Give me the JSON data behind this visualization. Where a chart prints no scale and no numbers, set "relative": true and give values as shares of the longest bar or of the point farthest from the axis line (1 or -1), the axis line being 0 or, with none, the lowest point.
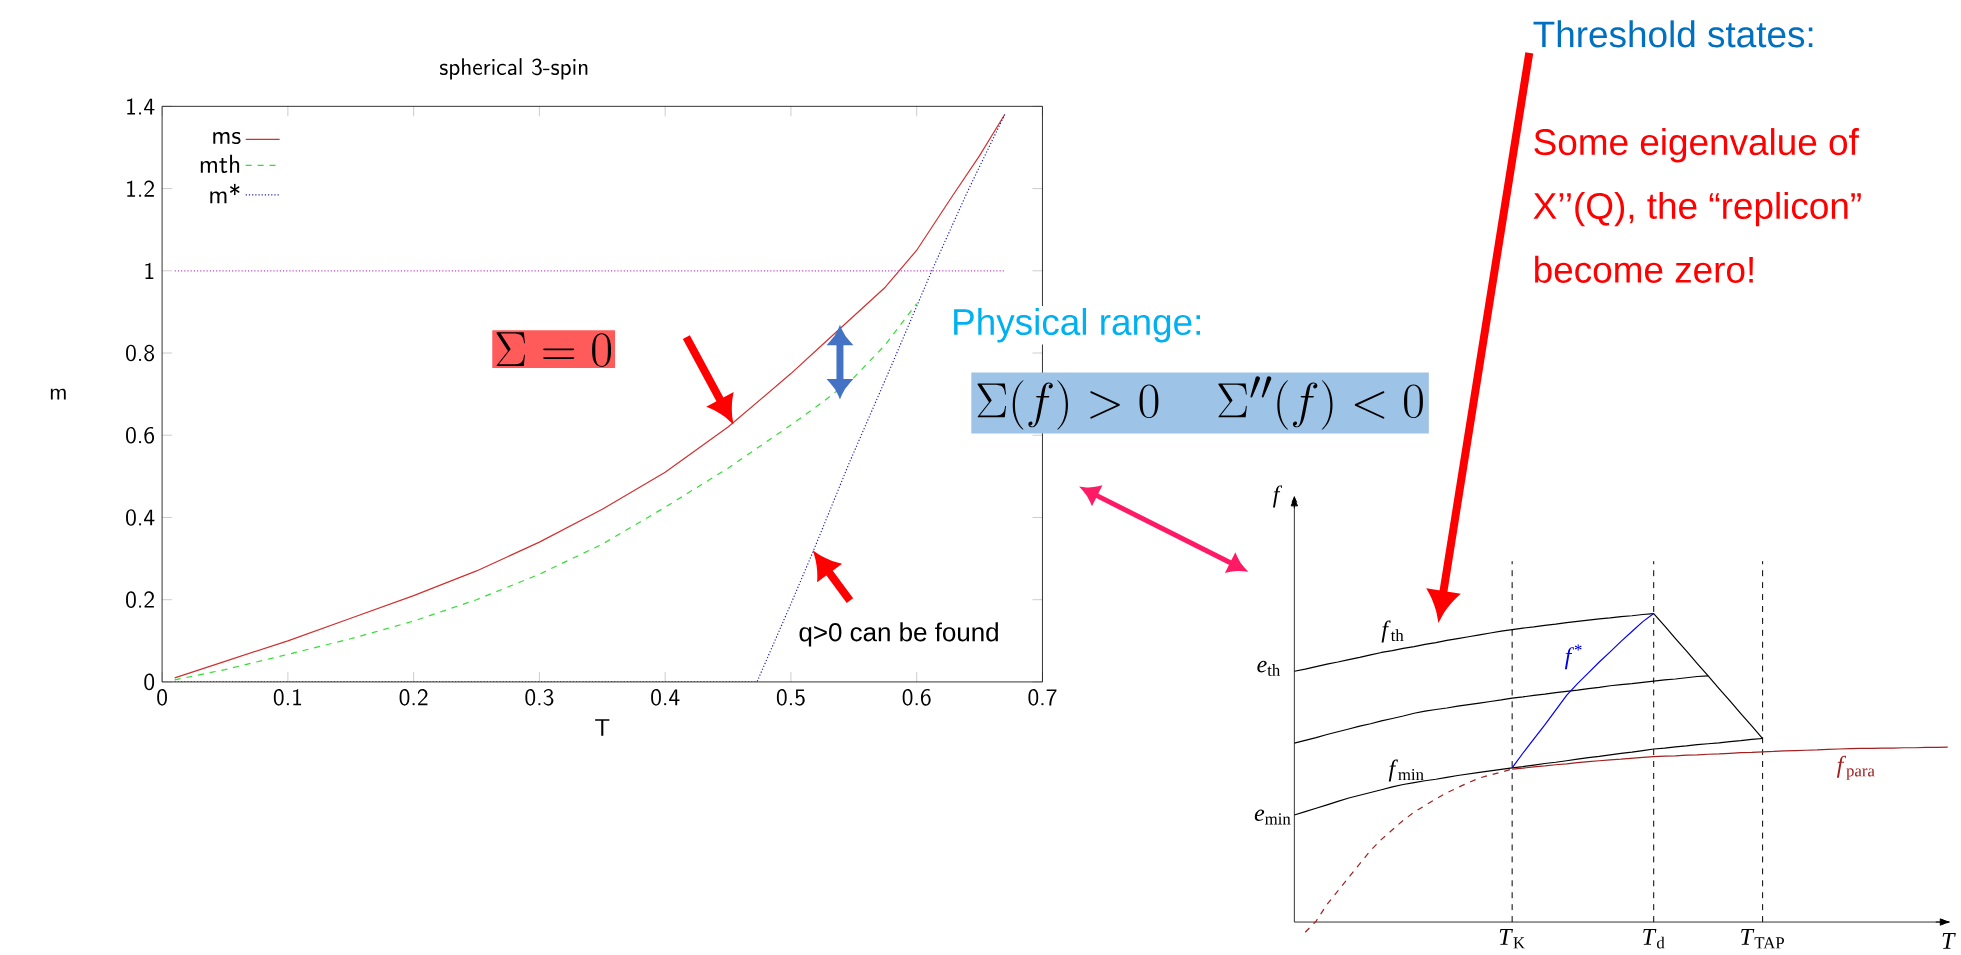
{
  "chart_data": [
    {
      "type": "line",
      "title": "spherical 3-spin",
      "xlabel": "T",
      "ylabel": "m",
      "xlim": [
        0,
        0.7
      ],
      "ylim": [
        0,
        1.4
      ],
      "xticks": [
        0,
        0.1,
        0.2,
        0.3,
        0.4,
        0.5,
        0.6,
        0.7
      ],
      "yticks": [
        0,
        0.2,
        0.4,
        0.6,
        0.8,
        1,
        1.2,
        1.4
      ],
      "legend": "top left",
      "annotations": [
        "\\Sigma = 0",
        "q>0 can be found",
        "Physical range:",
        "\\Sigma(f) > 0 \\quad \\Sigma''(f) < 0"
      ],
      "series": [
        {
          "name": "ms",
          "color": "#d03030",
          "line_style": "solid",
          "x": [
            0.01,
            0.05,
            0.1,
            0.15,
            0.2,
            0.25,
            0.3,
            0.35,
            0.4,
            0.45,
            0.5,
            0.525,
            0.55,
            0.575,
            0.6,
            0.628,
            0.65,
            0.67
          ],
          "values": [
            0.01,
            0.05,
            0.1,
            0.155,
            0.21,
            0.27,
            0.34,
            0.42,
            0.51,
            0.62,
            0.75,
            0.82,
            0.89,
            0.96,
            1.05,
            1.18,
            1.28,
            1.38
          ]
        },
        {
          "name": "mth",
          "color": "#33dd33",
          "line_style": "dashed",
          "x": [
            0.01,
            0.05,
            0.1,
            0.15,
            0.2,
            0.25,
            0.3,
            0.35,
            0.4,
            0.45,
            0.5,
            0.525,
            0.55,
            0.575,
            0.6
          ],
          "values": [
            0.005,
            0.03,
            0.067,
            0.105,
            0.148,
            0.2,
            0.262,
            0.335,
            0.425,
            0.52,
            0.625,
            0.68,
            0.74,
            0.82,
            0.92
          ]
        },
        {
          "name": "m*",
          "color": "#2020b0",
          "line_style": "dotted",
          "x": [
            0.01,
            0.473,
            0.5,
            0.518,
            0.546,
            0.58,
            0.612,
            0.64,
            0.67
          ],
          "values": [
            0,
            0,
            0.19,
            0.32,
            0.53,
            0.77,
            1.0,
            1.19,
            1.38
          ]
        },
        {
          "color": "#cc44cc",
          "line_style": "dotted",
          "x": [
            0.01,
            0.67
          ],
          "values": [
            1,
            1
          ]
        }
      ]
    },
    {
      "type": "line",
      "relative": true,
      "xlabel": "T",
      "ylabel": "f",
      "categories": [
        null,
        null,
        null,
        null,
        null,
        null,
        null,
        null,
        null,
        null,
        null,
        null,
        null,
        null,
        null,
        null,
        null,
        null,
        null,
        null,
        "*T*$_{K}$",
        null,
        null,
        null,
        null,
        null,
        null,
        null,
        null,
        null,
        null,
        null,
        null,
        "*T*$_{d}$",
        null,
        null,
        null,
        null,
        null,
        null,
        null,
        null,
        null,
        "*T*$_{TAP}$",
        null,
        null,
        null,
        null,
        null,
        null,
        null,
        null,
        null,
        null,
        null,
        null,
        null,
        null,
        null,
        null,
        null
      ],
      "ref_lines": [
        {
          "axis": "x",
          "value": "*T*$_{K}$",
          "color": "#000000",
          "line_style": "dashed"
        },
        {
          "axis": "x",
          "value": "*T*$_{d}$",
          "color": "#000000",
          "line_style": "dashed"
        },
        {
          "axis": "x",
          "value": "*T*$_{TAP}$",
          "color": "#000000",
          "line_style": "dashed"
        }
      ],
      "annotations": [
        "Threshold states:",
        "Some eigenvalue of X’’(Q), the “replicon” become zero!",
        "*e*$_{th}$",
        "*e*$_{min}$"
      ],
      "series": [
        {
          "name": "*f*$_{th}$",
          "color": "#000000",
          "line_style": "solid",
          "values": [
            0.813,
            0.82,
            0.828,
            0.836,
            0.843,
            0.851,
            0.858,
            0.866,
            0.874,
            0.88,
            0.887,
            0.893,
            0.9,
            0.906,
            0.913,
            0.919,
            0.925,
            0.931,
            0.937,
            0.943,
            0.948,
            0.953,
            0.957,
            0.962,
            0.966,
            0.971,
            0.975,
            0.979,
            0.983,
            0.986,
            0.99,
            0.993,
            0.997,
            1.0,
            null,
            null,
            null,
            null,
            null,
            null,
            null,
            null,
            null,
            null,
            null,
            null,
            null,
            null,
            null,
            null,
            null,
            null,
            null,
            null,
            null,
            null,
            null,
            null,
            null,
            null,
            null
          ]
        },
        {
          "color": "#000000",
          "line_style": "solid",
          "values": [
            null,
            null,
            null,
            null,
            null,
            null,
            null,
            null,
            null,
            null,
            null,
            null,
            null,
            null,
            null,
            null,
            null,
            null,
            null,
            null,
            null,
            null,
            null,
            null,
            null,
            null,
            null,
            null,
            null,
            null,
            null,
            null,
            null,
            1.0,
            0.96,
            0.919,
            0.879,
            0.838,
            0.798,
            0.757,
            0.717,
            0.676,
            0.636,
            0.595,
            null,
            null,
            null,
            null,
            null,
            null,
            null,
            null,
            null,
            null,
            null,
            null,
            null,
            null,
            null,
            null,
            null
          ]
        },
        {
          "color": "#000000",
          "line_style": "solid",
          "values": [
            0.58,
            0.589,
            0.598,
            0.608,
            0.617,
            0.626,
            0.635,
            0.643,
            0.652,
            0.66,
            0.668,
            0.677,
            0.684,
            0.689,
            0.694,
            0.7,
            0.705,
            0.71,
            0.715,
            0.72,
            0.726,
            0.73,
            0.735,
            0.739,
            0.744,
            0.748,
            0.752,
            0.757,
            0.761,
            0.766,
            0.77,
            0.773,
            0.777,
            0.781,
            0.785,
            0.788,
            0.792,
            0.796,
            0.798,
            null,
            null,
            null,
            null,
            null,
            null,
            null,
            null,
            null,
            null,
            null,
            null,
            null,
            null,
            null,
            null,
            null,
            null,
            null,
            null,
            null,
            null
          ]
        },
        {
          "name": "*f*$_{min}$",
          "color": "#000000",
          "line_style": "solid",
          "values": [
            0.347,
            0.358,
            0.369,
            0.38,
            0.391,
            0.402,
            0.411,
            0.42,
            0.429,
            0.438,
            0.446,
            0.452,
            0.458,
            0.463,
            0.469,
            0.475,
            0.48,
            0.485,
            0.49,
            0.495,
            0.5,
            0.504,
            0.509,
            0.514,
            0.518,
            0.523,
            0.528,
            0.533,
            0.537,
            0.542,
            0.547,
            0.551,
            0.556,
            0.561,
            0.564,
            0.568,
            0.571,
            0.575,
            0.578,
            0.581,
            0.585,
            0.588,
            0.592,
            0.595,
            null,
            null,
            null,
            null,
            null,
            null,
            null,
            null,
            null,
            null,
            null,
            null,
            null,
            null,
            null,
            null,
            null
          ]
        },
        {
          "name": "*f*$^{*}$",
          "color": "#0000ee",
          "line_style": "solid",
          "values": [
            null,
            null,
            null,
            null,
            null,
            null,
            null,
            null,
            null,
            null,
            null,
            null,
            null,
            null,
            null,
            null,
            null,
            null,
            null,
            null,
            0.5,
            0.548,
            0.594,
            0.639,
            0.687,
            0.735,
            0.773,
            0.808,
            0.843,
            0.876,
            0.91,
            0.942,
            0.974,
            1.0,
            null,
            null,
            null,
            null,
            null,
            null,
            null,
            null,
            null,
            null,
            null,
            null,
            null,
            null,
            null,
            null,
            null,
            null,
            null,
            null,
            null,
            null,
            null,
            null,
            null,
            null,
            null
          ]
        },
        {
          "name": "*f*$_{para}$",
          "color": "#a02020",
          "line_style": "solid",
          "values": [
            null,
            null,
            null,
            null,
            null,
            null,
            null,
            null,
            null,
            null,
            null,
            null,
            null,
            null,
            null,
            null,
            null,
            null,
            null,
            null,
            0.496,
            0.499,
            0.503,
            0.506,
            0.51,
            0.513,
            0.517,
            0.52,
            0.523,
            0.526,
            0.528,
            0.531,
            0.534,
            0.536,
            0.538,
            0.539,
            0.541,
            0.542,
            0.544,
            0.545,
            0.547,
            0.549,
            0.55,
            0.552,
            0.553,
            0.555,
            0.556,
            0.557,
            0.558,
            0.56,
            0.561,
            0.562,
            0.563,
            0.563,
            0.564,
            0.564,
            0.565,
            0.565,
            0.566,
            0.566,
            0.567
          ]
        },
        {
          "color": "#a02020",
          "line_style": "dashed",
          "values": [
            null,
            -0.033,
            0.003,
            0.057,
            0.101,
            0.145,
            0.189,
            0.232,
            0.268,
            0.299,
            0.33,
            0.356,
            0.378,
            0.399,
            0.419,
            0.436,
            0.452,
            0.467,
            0.477,
            0.486,
            0.496,
            null,
            null,
            null,
            null,
            null,
            null,
            null,
            null,
            null,
            null,
            null,
            null,
            null,
            null,
            null,
            null,
            null,
            null,
            null,
            null,
            null,
            null,
            null,
            null,
            null,
            null,
            null,
            null,
            null,
            null,
            null,
            null,
            null,
            null,
            null,
            null,
            null,
            null,
            null,
            null
          ]
        }
      ]
    }
  ]
}
